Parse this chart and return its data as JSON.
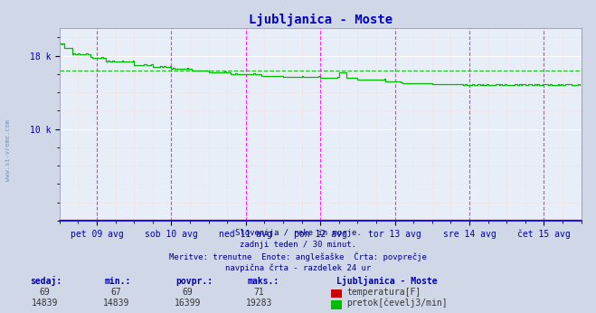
{
  "title": "Ljubljanica - Moste",
  "title_color": "#0000cc",
  "bg_color": "#d0d8e8",
  "plot_bg_color": "#e8eef8",
  "xlabel_color": "#0000aa",
  "ylabel_ticks": [
    "10 k",
    "18 k"
  ],
  "ylabel_values": [
    10000,
    18000
  ],
  "ymin": 0,
  "ymax": 21000,
  "xmin": 0,
  "xmax": 336,
  "day_labels": [
    "pet 09 avg",
    "sob 10 avg",
    "ned 11 avg",
    "pon 12 avg",
    "tor 13 avg",
    "sre 14 avg",
    "čet 15 avg"
  ],
  "day_ticks_x": [
    24,
    72,
    120,
    168,
    216,
    264,
    312
  ],
  "vline_positions": [
    24,
    72,
    120,
    168,
    216,
    264,
    312
  ],
  "avg_flow": 16399,
  "subtitle_lines": [
    "Slovenija / reke in morje.",
    "zadnji teden / 30 minut.",
    "Meritve: trenutne  Enote: anglešaške  Črta: povprečje",
    "navpična črta - razdelek 24 ur"
  ],
  "legend_title": "Ljubljanica - Moste",
  "legend_items": [
    {
      "label": "temperatura[F]",
      "color": "#cc0000"
    },
    {
      "label": "pretok[čevelj3/min]",
      "color": "#00cc00"
    }
  ],
  "stats_headers": [
    "sedaj:",
    "min.:",
    "povpr.:",
    "maks.:"
  ],
  "stats_temp": [
    69,
    67,
    69,
    71
  ],
  "stats_flow": [
    14839,
    14839,
    16399,
    19283
  ],
  "temp_color": "#cc0000",
  "flow_color": "#00bb00",
  "sidebar_text_color": "#4488aa",
  "sidebar_text": "www.si-vreme.com"
}
